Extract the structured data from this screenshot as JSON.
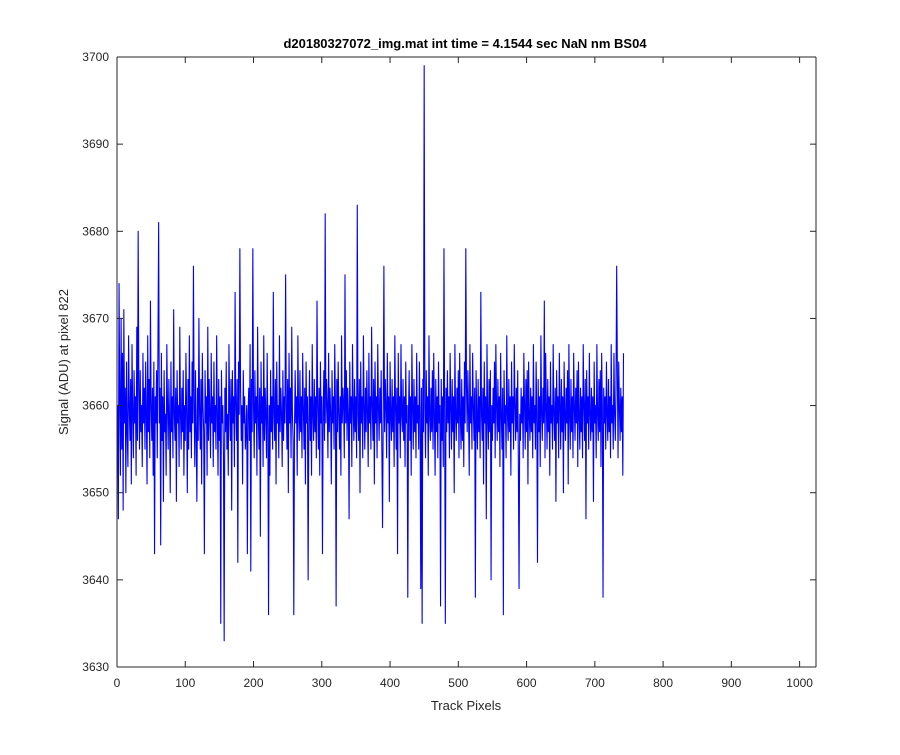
{
  "chart_data": {
    "type": "line",
    "title": "d20180327072_img.mat int time = 4.1544 sec  NaN nm BS04",
    "xlabel": "Track Pixels",
    "ylabel": "Signal (ADU) at pixel 822",
    "xlim": [
      0,
      1024
    ],
    "ylim": [
      3630,
      3700
    ],
    "xticks": [
      0,
      100,
      200,
      300,
      400,
      500,
      600,
      700,
      800,
      900,
      1000
    ],
    "yticks": [
      3630,
      3640,
      3650,
      3660,
      3670,
      3680,
      3690,
      3700
    ],
    "grid": false,
    "legend": "none",
    "series_color": "#0000ff",
    "series": [
      {
        "x_start": 1,
        "x_step": 1,
        "values": [
          3660,
          3647,
          3674,
          3661,
          3652,
          3670,
          3655,
          3666,
          3648,
          3671,
          3658,
          3662,
          3650,
          3665,
          3657,
          3653,
          3668,
          3660,
          3656,
          3663,
          3651,
          3667,
          3659,
          3654,
          3664,
          3658,
          3661,
          3652,
          3669,
          3656,
          3680,
          3662,
          3655,
          3664,
          3657,
          3660,
          3653,
          3666,
          3658,
          3662,
          3655,
          3665,
          3659,
          3651,
          3668,
          3657,
          3663,
          3654,
          3672,
          3660,
          3656,
          3662,
          3652,
          3665,
          3643,
          3661,
          3658,
          3664,
          3654,
          3667,
          3681,
          3658,
          3662,
          3644,
          3666,
          3656,
          3661,
          3649,
          3664,
          3657,
          3659,
          3652,
          3667,
          3660,
          3655,
          3663,
          3658,
          3650,
          3665,
          3657,
          3661,
          3654,
          3671,
          3659,
          3656,
          3662,
          3649,
          3664,
          3658,
          3660,
          3653,
          3669,
          3659,
          3655,
          3662,
          3657,
          3664,
          3652,
          3660,
          3656,
          3666,
          3659,
          3650,
          3663,
          3655,
          3668,
          3657,
          3661,
          3654,
          3665,
          3658,
          3676,
          3660,
          3653,
          3664,
          3657,
          3649,
          3662,
          3656,
          3670,
          3659,
          3655,
          3663,
          3651,
          3666,
          3660,
          3657,
          3643,
          3664,
          3658,
          3661,
          3652,
          3669,
          3656,
          3663,
          3659,
          3654,
          3666,
          3658,
          3661,
          3653,
          3665,
          3657,
          3660,
          3655,
          3668,
          3659,
          3652,
          3663,
          3656,
          3661,
          3635,
          3664,
          3658,
          3660,
          3654,
          3633,
          3662,
          3657,
          3665,
          3655,
          3659,
          3652,
          3667,
          3660,
          3656,
          3663,
          3648,
          3664,
          3658,
          3661,
          3653,
          3673,
          3660,
          3656,
          3663,
          3642,
          3665,
          3659,
          3678,
          3662,
          3656,
          3660,
          3651,
          3664,
          3658,
          3661,
          3655,
          3657,
          3660,
          3643,
          3659,
          3662,
          3656,
          3667,
          3641,
          3663,
          3657,
          3678,
          3660,
          3654,
          3664,
          3658,
          3661,
          3652,
          3669,
          3659,
          3655,
          3662,
          3645,
          3665,
          3658,
          3661,
          3653,
          3668,
          3656,
          3662,
          3659,
          3654,
          3666,
          3658,
          3636,
          3660,
          3652,
          3664,
          3657,
          3661,
          3655,
          3673,
          3659,
          3656,
          3663,
          3651,
          3665,
          3658,
          3660,
          3654,
          3668,
          3657,
          3662,
          3659,
          3653,
          3664,
          3656,
          3661,
          3658,
          3675,
          3660,
          3655,
          3663,
          3650,
          3666,
          3658,
          3662,
          3654,
          3669,
          3659,
          3656,
          3636,
          3657,
          3664,
          3658,
          3661,
          3652,
          3668,
          3659,
          3656,
          3664,
          3657,
          3661,
          3654,
          3666,
          3660,
          3655,
          3662,
          3651,
          3665,
          3658,
          3661,
          3640,
          3658,
          3664,
          3656,
          3661,
          3652,
          3667,
          3659,
          3656,
          3663,
          3657,
          3661,
          3654,
          3672,
          3660,
          3655,
          3662,
          3652,
          3665,
          3658,
          3661,
          3643,
          3659,
          3664,
          3656,
          3682,
          3658,
          3663,
          3660,
          3654,
          3666,
          3657,
          3662,
          3659,
          3651,
          3664,
          3658,
          3661,
          3655,
          3667,
          3660,
          3637,
          3663,
          3657,
          3665,
          3659,
          3655,
          3661,
          3652,
          3668,
          3658,
          3662,
          3660,
          3654,
          3675,
          3658,
          3664,
          3656,
          3662,
          3659,
          3647,
          3665,
          3658,
          3661,
          3653,
          3667,
          3660,
          3656,
          3663,
          3657,
          3661,
          3654,
          3683,
          3659,
          3656,
          3663,
          3650,
          3665,
          3658,
          3661,
          3654,
          3668,
          3660,
          3655,
          3662,
          3657,
          3664,
          3659,
          3653,
          3666,
          3658,
          3661,
          3655,
          3669,
          3660,
          3656,
          3663,
          3651,
          3665,
          3658,
          3661,
          3654,
          3667,
          3660,
          3656,
          3662,
          3658,
          3664,
          3655,
          3646,
          3659,
          3676,
          3657,
          3663,
          3660,
          3654,
          3666,
          3658,
          3661,
          3649,
          3665,
          3659,
          3656,
          3663,
          3657,
          3661,
          3653,
          3668,
          3660,
          3655,
          3662,
          3643,
          3666,
          3658,
          3661,
          3654,
          3667,
          3659,
          3657,
          3663,
          3656,
          3661,
          3653,
          3665,
          3658,
          3660,
          3638,
          3659,
          3664,
          3656,
          3661,
          3652,
          3667,
          3660,
          3655,
          3663,
          3657,
          3661,
          3654,
          3666,
          3658,
          3660,
          3655,
          3665,
          3659,
          3639,
          3662,
          3635,
          3663,
          3657,
          3699,
          3660,
          3654,
          3664,
          3658,
          3661,
          3652,
          3668,
          3659,
          3656,
          3662,
          3657,
          3664,
          3655,
          3666,
          3659,
          3652,
          3663,
          3657,
          3661,
          3654,
          3665,
          3658,
          3660,
          3637,
          3663,
          3656,
          3661,
          3653,
          3678,
          3659,
          3635,
          3662,
          3657,
          3664,
          3658,
          3661,
          3654,
          3666,
          3660,
          3655,
          3663,
          3657,
          3661,
          3650,
          3667,
          3659,
          3656,
          3662,
          3658,
          3664,
          3654,
          3666,
          3659,
          3655,
          3663,
          3656,
          3661,
          3653,
          3665,
          3658,
          3678,
          3662,
          3657,
          3664,
          3659,
          3652,
          3667,
          3658,
          3661,
          3655,
          3666,
          3660,
          3656,
          3662,
          3638,
          3664,
          3659,
          3655,
          3663,
          3657,
          3661,
          3654,
          3673,
          3659,
          3656,
          3662,
          3651,
          3665,
          3658,
          3661,
          3647,
          3667,
          3659,
          3655,
          3663,
          3657,
          3664,
          3640,
          3660,
          3656,
          3662,
          3658,
          3665,
          3654,
          3667,
          3660,
          3656,
          3663,
          3657,
          3661,
          3653,
          3666,
          3659,
          3655,
          3662,
          3636,
          3664,
          3658,
          3660,
          3654,
          3668,
          3659,
          3656,
          3663,
          3657,
          3661,
          3652,
          3665,
          3658,
          3661,
          3655,
          3667,
          3660,
          3656,
          3662,
          3657,
          3664,
          3653,
          3639,
          3659,
          3656,
          3662,
          3658,
          3661,
          3654,
          3666,
          3660,
          3655,
          3663,
          3657,
          3664,
          3651,
          3665,
          3659,
          3656,
          3662,
          3657,
          3661,
          3654,
          3667,
          3658,
          3660,
          3655,
          3665,
          3659,
          3642,
          3663,
          3657,
          3661,
          3653,
          3668,
          3659,
          3656,
          3662,
          3658,
          3672,
          3654,
          3666,
          3660,
          3655,
          3663,
          3657,
          3661,
          3652,
          3665,
          3658,
          3660,
          3655,
          3667,
          3659,
          3656,
          3662,
          3649,
          3664,
          3658,
          3661,
          3654,
          3666,
          3660,
          3655,
          3663,
          3657,
          3661,
          3650,
          3665,
          3659,
          3656,
          3662,
          3658,
          3664,
          3651,
          3667,
          3659,
          3655,
          3663,
          3657,
          3661,
          3654,
          3666,
          3660,
          3656,
          3662,
          3658,
          3664,
          3653,
          3665,
          3659,
          3655,
          3662,
          3657,
          3661,
          3654,
          3667,
          3660,
          3656,
          3663,
          3647,
          3664,
          3658,
          3661,
          3655,
          3666,
          3659,
          3656,
          3662,
          3657,
          3661,
          3649,
          3665,
          3658,
          3660,
          3654,
          3667,
          3659,
          3656,
          3663,
          3657,
          3664,
          3653,
          3666,
          3660,
          3638,
          3662,
          3658,
          3661,
          3655,
          3665,
          3659,
          3656,
          3663,
          3657,
          3661,
          3654,
          3667,
          3658,
          3660,
          3655,
          3666,
          3659,
          3656,
          3662,
          3676,
          3664,
          3654,
          3665,
          3660,
          3656,
          3662,
          3657,
          3661,
          3652,
          3666
        ]
      }
    ]
  }
}
